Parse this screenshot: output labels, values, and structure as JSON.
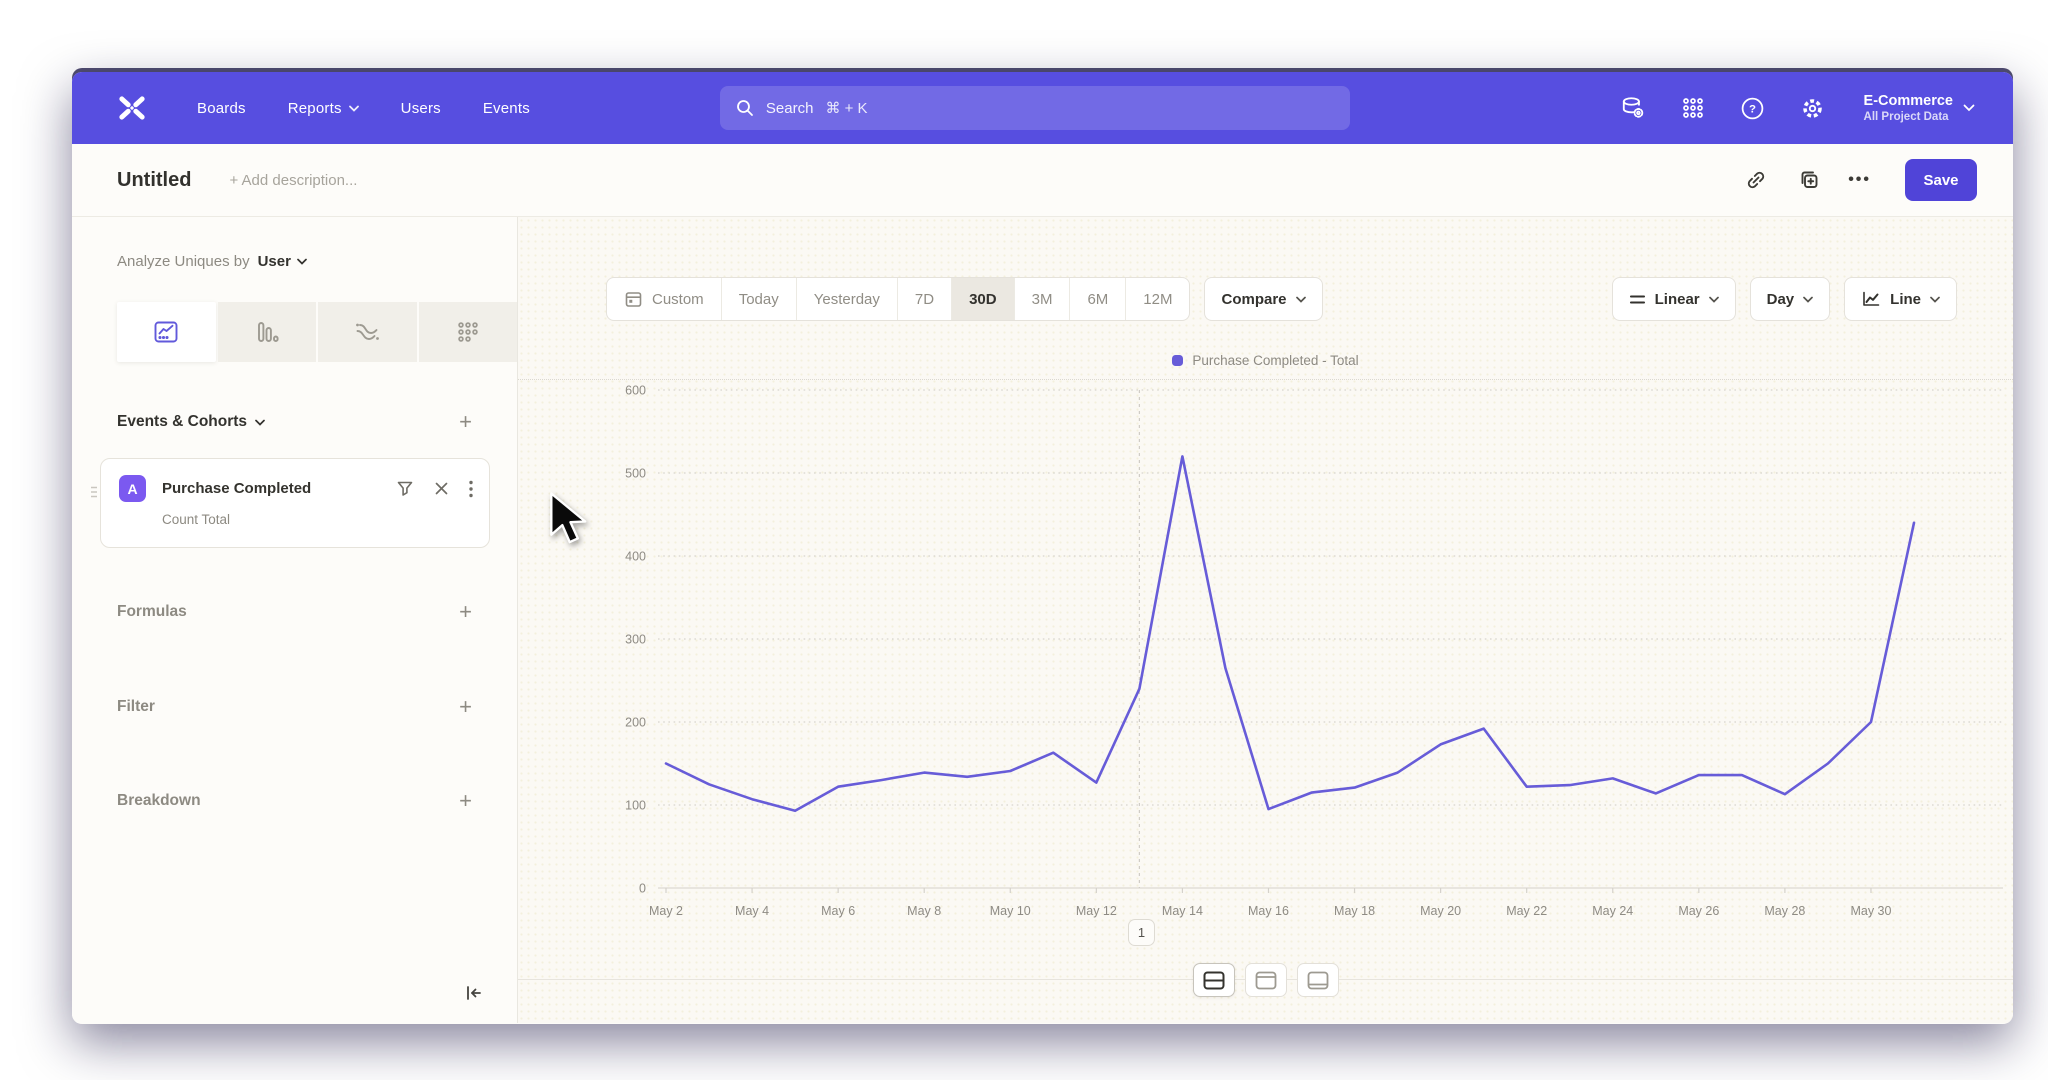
{
  "nav": {
    "items": [
      "Boards",
      "Reports",
      "Users",
      "Events"
    ],
    "search": {
      "label": "Search",
      "shortcut": "⌘ + K"
    },
    "project": {
      "name": "E-Commerce",
      "subtitle": "All Project Data"
    }
  },
  "header": {
    "title": "Untitled",
    "description_placeholder": "+ Add description...",
    "save_label": "Save"
  },
  "sidebar": {
    "analyze_prefix": "Analyze Uniques by",
    "analyze_value": "User",
    "events_header": "Events & Cohorts",
    "event_card": {
      "badge": "A",
      "name": "Purchase Completed",
      "metric": "Count Total"
    },
    "formulas_label": "Formulas",
    "filter_label": "Filter",
    "breakdown_label": "Breakdown"
  },
  "toolbar": {
    "ranges": [
      "Custom",
      "Today",
      "Yesterday",
      "7D",
      "30D",
      "3M",
      "6M",
      "12M"
    ],
    "active_range": "30D",
    "compare_label": "Compare",
    "scale_label": "Linear",
    "interval_label": "Day",
    "chart_type_label": "Line"
  },
  "chart_data": {
    "type": "line",
    "legend": "Purchase Completed - Total",
    "x": [
      "May 2",
      "May 3",
      "May 4",
      "May 5",
      "May 6",
      "May 7",
      "May 8",
      "May 9",
      "May 10",
      "May 11",
      "May 12",
      "May 13",
      "May 14",
      "May 15",
      "May 16",
      "May 17",
      "May 18",
      "May 19",
      "May 20",
      "May 21",
      "May 22",
      "May 23",
      "May 24",
      "May 25",
      "May 26",
      "May 27",
      "May 28",
      "May 29",
      "May 30",
      "May 31"
    ],
    "x_tick_every": 2,
    "series": [
      {
        "name": "Purchase Completed - Total",
        "color": "#675CD8",
        "values": [
          150,
          125,
          107,
          93,
          122,
          130,
          139,
          134,
          141,
          163,
          127,
          240,
          520,
          265,
          95,
          115,
          121,
          139,
          173,
          192,
          122,
          124,
          132,
          114,
          136,
          136,
          113,
          150,
          200,
          440
        ]
      }
    ],
    "ylim": [
      0,
      600
    ],
    "yticks": [
      0,
      100,
      200,
      300,
      400,
      500,
      600
    ],
    "grid": "dotted-horizontal",
    "vline_index": 11,
    "legend_position": "top-center"
  },
  "pagination": {
    "page": "1"
  },
  "colors": {
    "nav": "#574EE0",
    "accent": "#5044D8",
    "line": "#675CD8",
    "badge": "#7B59F0"
  }
}
